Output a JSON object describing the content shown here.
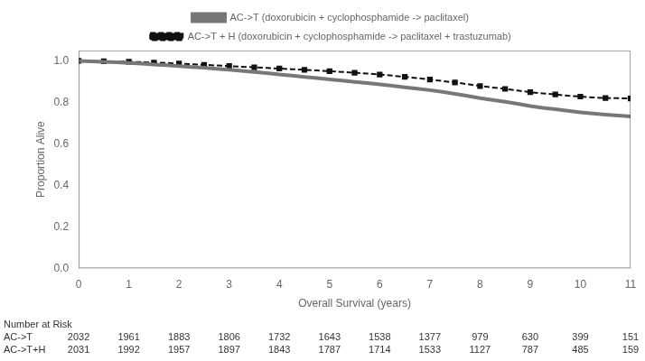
{
  "chart_data": {
    "type": "line",
    "xlabel": "Overall Survival (years)",
    "ylabel": "Proportion Alive",
    "x": [
      0,
      0.25,
      0.5,
      0.75,
      1,
      1.25,
      1.5,
      1.75,
      2,
      2.25,
      2.5,
      2.75,
      3,
      3.25,
      3.5,
      3.75,
      4,
      4.25,
      4.5,
      4.75,
      5,
      5.25,
      5.5,
      5.75,
      6,
      6.25,
      6.5,
      6.75,
      7,
      7.25,
      7.5,
      7.75,
      8,
      8.25,
      8.5,
      8.75,
      9,
      9.25,
      9.5,
      9.75,
      10,
      10.25,
      10.5,
      10.75,
      11
    ],
    "series": [
      {
        "name": "AC->T (doxorubicin + cyclophosphamide -> paclitaxel)",
        "color": "#777777",
        "line_style": "solid",
        "marker": "none",
        "values": [
          1.0,
          0.998,
          0.996,
          0.993,
          0.99,
          0.987,
          0.983,
          0.979,
          0.975,
          0.971,
          0.967,
          0.962,
          0.957,
          0.952,
          0.947,
          0.941,
          0.935,
          0.929,
          0.923,
          0.917,
          0.911,
          0.905,
          0.899,
          0.893,
          0.887,
          0.88,
          0.873,
          0.866,
          0.859,
          0.851,
          0.841,
          0.831,
          0.82,
          0.812,
          0.803,
          0.793,
          0.782,
          0.774,
          0.767,
          0.759,
          0.752,
          0.746,
          0.741,
          0.737,
          0.732
        ]
      },
      {
        "name": "AC->T + H (doxorubicin + cyclophosphamide -> paclitaxel + trastuzumab)",
        "color": "#111111",
        "line_style": "dashed",
        "marker": "square",
        "values": [
          1.0,
          0.999,
          0.998,
          0.997,
          0.996,
          0.994,
          0.992,
          0.99,
          0.987,
          0.984,
          0.981,
          0.978,
          0.975,
          0.972,
          0.969,
          0.966,
          0.963,
          0.96,
          0.957,
          0.954,
          0.95,
          0.947,
          0.943,
          0.939,
          0.934,
          0.929,
          0.923,
          0.917,
          0.91,
          0.903,
          0.896,
          0.888,
          0.879,
          0.872,
          0.865,
          0.857,
          0.849,
          0.843,
          0.838,
          0.832,
          0.828,
          0.824,
          0.821,
          0.82,
          0.819
        ]
      }
    ],
    "xlim": [
      0,
      11
    ],
    "ylim": [
      0.0,
      1.05
    ],
    "xticks": [
      0,
      1,
      2,
      3,
      4,
      5,
      6,
      7,
      8,
      9,
      10,
      11
    ],
    "yticks": [
      {
        "value": 0.0,
        "label": "0.0"
      },
      0.2,
      0.4,
      0.6,
      0.8,
      {
        "value": 1.0,
        "label": "1.0"
      }
    ],
    "grid": false,
    "legend": "top",
    "annotations": [
      {
        "text": "Number at Risk"
      },
      {
        "text": "AC->T",
        "x": [
          0,
          1,
          2,
          3,
          4,
          5,
          6,
          7,
          8,
          9,
          10,
          11
        ],
        "values": [
          2032,
          1961,
          1883,
          1806,
          1732,
          1643,
          1538,
          1377,
          979,
          630,
          399,
          151
        ]
      },
      {
        "text": "AC->T+H",
        "x": [
          0,
          1,
          2,
          3,
          4,
          5,
          6,
          7,
          8,
          9,
          10,
          11
        ],
        "values": [
          2031,
          1992,
          1957,
          1897,
          1843,
          1787,
          1714,
          1533,
          1127,
          787,
          485,
          159
        ]
      }
    ]
  }
}
